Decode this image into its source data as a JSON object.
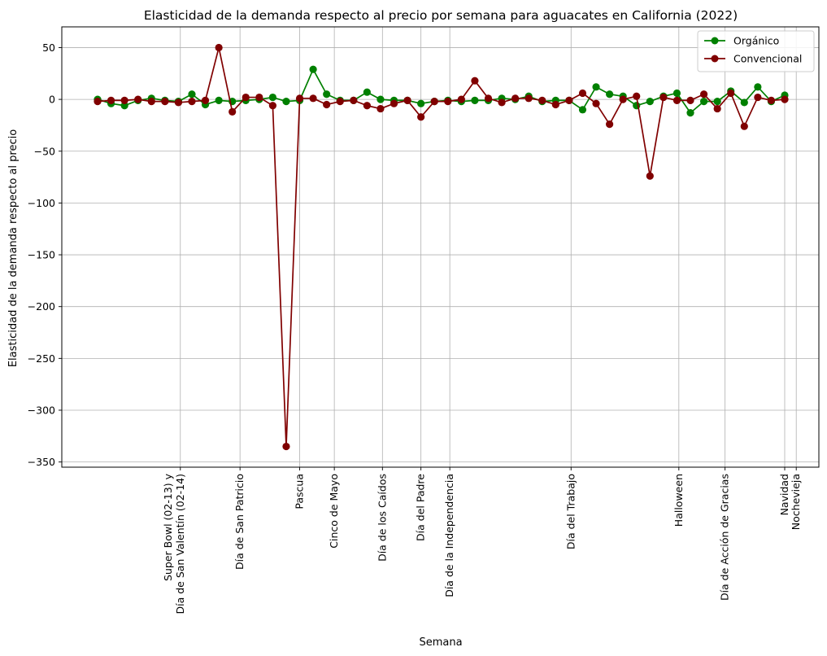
{
  "chart_data": {
    "type": "line",
    "title": "Elasticidad de la demanda respecto al precio por semana para aguacates en California (2022)",
    "xlabel": "Semana",
    "ylabel": "Elasticidad de la demanda respecto al precio",
    "ylim": [
      -355,
      70
    ],
    "yticks": [
      50,
      0,
      -50,
      -100,
      -150,
      -200,
      -250,
      -300,
      -350
    ],
    "ytick_labels": [
      "50",
      "0",
      "−50",
      "−100",
      "−150",
      "−200",
      "−250",
      "−300",
      "−350"
    ],
    "grid": true,
    "legend_position": "top-right",
    "weeks": [
      "2022-01-02",
      "2022-01-09",
      "2022-01-16",
      "2022-01-23",
      "2022-01-30",
      "2022-02-06",
      "2022-02-13",
      "2022-02-20",
      "2022-02-27",
      "2022-03-06",
      "2022-03-13",
      "2022-03-20",
      "2022-03-27",
      "2022-04-03",
      "2022-04-10",
      "2022-04-17",
      "2022-04-24",
      "2022-05-01",
      "2022-05-08",
      "2022-05-15",
      "2022-05-22",
      "2022-05-29",
      "2022-06-05",
      "2022-06-12",
      "2022-06-19",
      "2022-06-26",
      "2022-07-03",
      "2022-07-10",
      "2022-07-17",
      "2022-07-24",
      "2022-07-31",
      "2022-08-07",
      "2022-08-14",
      "2022-08-21",
      "2022-08-28",
      "2022-09-04",
      "2022-09-11",
      "2022-09-18",
      "2022-09-25",
      "2022-10-02",
      "2022-10-09",
      "2022-10-16",
      "2022-10-23",
      "2022-10-30",
      "2022-11-06",
      "2022-11-13",
      "2022-11-20",
      "2022-11-27",
      "2022-12-04",
      "2022-12-11",
      "2022-12-18",
      "2022-12-25"
    ],
    "holidays": [
      {
        "date": "2022-02-14",
        "label": "Super Bowl (02-13) y\nDía de San Valentín (02-14)"
      },
      {
        "date": "2022-03-17",
        "label": "Día de San Patricio"
      },
      {
        "date": "2022-04-17",
        "label": "Pascua"
      },
      {
        "date": "2022-05-05",
        "label": "Cinco de Mayo"
      },
      {
        "date": "2022-05-30",
        "label": "Día de los Caídos"
      },
      {
        "date": "2022-06-19",
        "label": "Día del Padre"
      },
      {
        "date": "2022-07-04",
        "label": "Día de la Independencia"
      },
      {
        "date": "2022-09-05",
        "label": "Día del Trabajo"
      },
      {
        "date": "2022-10-31",
        "label": "Halloween"
      },
      {
        "date": "2022-11-24",
        "label": "Día de Acción de Gracias"
      },
      {
        "date": "2022-12-25",
        "label": "Navidad"
      },
      {
        "date": "2022-12-31",
        "label": "Nochevieja"
      }
    ],
    "series": [
      {
        "name": "Orgánico",
        "color": "#008000",
        "values": [
          0,
          -4,
          -6,
          -1,
          1,
          -1,
          -2,
          5,
          -5,
          -1,
          -2,
          -1,
          0,
          2,
          -2,
          -1,
          29,
          5,
          -1,
          -1,
          7,
          0,
          -1,
          -1,
          -4,
          -2,
          -1,
          -2,
          -1,
          -1,
          1,
          0,
          3,
          -2,
          -1,
          -1,
          -10,
          12,
          5,
          3,
          -6,
          -2,
          3,
          6,
          -13,
          -2,
          -2,
          8,
          -3,
          12,
          -2,
          4
        ]
      },
      {
        "name": "Convencional",
        "color": "#800000",
        "values": [
          -2,
          -1,
          -1,
          0,
          -2,
          -2,
          -3,
          -2,
          -1,
          50,
          -12,
          2,
          2,
          -6,
          -335,
          1,
          1,
          -5,
          -2,
          -1,
          -6,
          -9,
          -4,
          -1,
          -17,
          -2,
          -2,
          0,
          18,
          1,
          -3,
          1,
          1,
          -1,
          -5,
          -1,
          6,
          -4,
          -24,
          0,
          3,
          -74,
          2,
          -1,
          -1,
          5,
          -9,
          6,
          -26,
          2,
          -1,
          0
        ]
      }
    ]
  }
}
